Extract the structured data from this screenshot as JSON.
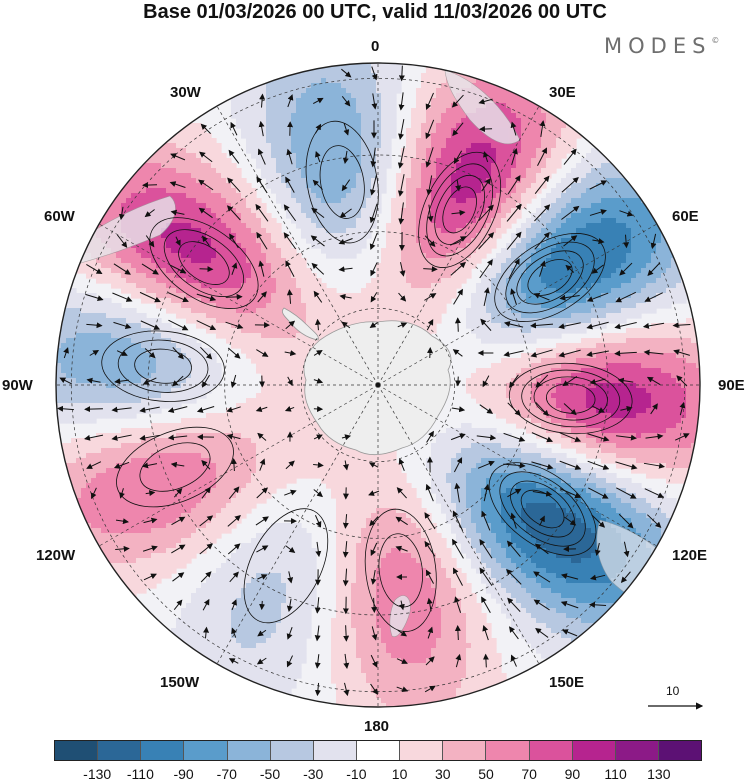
{
  "title": "Base 01/03/2026 00 UTC, valid 11/03/2026 00 UTC",
  "brand": {
    "name": "MODES",
    "mark": "©"
  },
  "lon_labels": {
    "lon_0": "0",
    "lon_30e": "30E",
    "lon_60e": "60E",
    "lon_90e": "90E",
    "lon_120e": "120E",
    "lon_150e": "150E",
    "lon_180": "180",
    "lon_150w": "150W",
    "lon_120w": "120W",
    "lon_90w": "90W",
    "lon_60w": "60W",
    "lon_30w": "30W"
  },
  "reference_vector": {
    "label": "10",
    "value": 10
  },
  "colorbar": {
    "colors": [
      "#1f4f74",
      "#2b6797",
      "#3881b5",
      "#5a9ccb",
      "#8bb4d9",
      "#b7c8e1",
      "#e2e2ee",
      "#ffffff",
      "#f8d8dd",
      "#f3b2c2",
      "#ee86ad",
      "#db529c",
      "#b6248f",
      "#8c1a87",
      "#5c1174"
    ],
    "ticks": [
      "-130",
      "-110",
      "-90",
      "-70",
      "-50",
      "-30",
      "-10",
      "10",
      "30",
      "50",
      "70",
      "90",
      "110",
      "130"
    ]
  },
  "field": {
    "projection": "south-polar-stereographic",
    "centers_deg": [
      {
        "lon": -10,
        "rho": 0.64,
        "value": -80
      },
      {
        "lon": 25,
        "rho": 0.6,
        "value": 125
      },
      {
        "lon": 58,
        "rho": 0.63,
        "value": -135
      },
      {
        "lon": 94,
        "rho": 0.6,
        "value": 130
      },
      {
        "lon": 127,
        "rho": 0.64,
        "value": -140
      },
      {
        "lon": 173,
        "rho": 0.58,
        "value": 75
      },
      {
        "lon": -153,
        "rho": 0.63,
        "value": -45
      },
      {
        "lon": -112,
        "rho": 0.68,
        "value": 85
      },
      {
        "lon": -85,
        "rho": 0.67,
        "value": -90
      },
      {
        "lon": -55,
        "rho": 0.66,
        "value": 110
      }
    ]
  }
}
